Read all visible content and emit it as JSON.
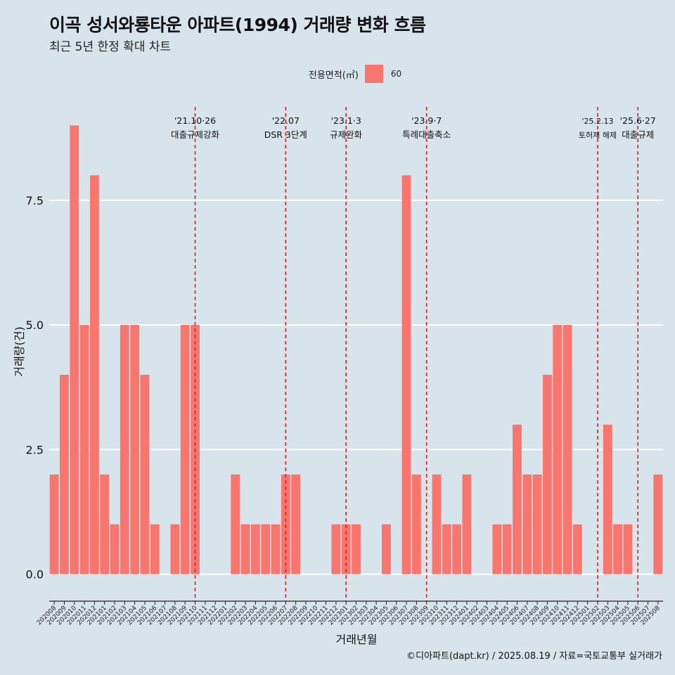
{
  "title": "이곡 성서와룡타운 아파트(1994) 거래량 변화 흐름",
  "subtitle": "최근 5년 한정 확대 차트",
  "caption": "©디아파트(dapt.kr) / 2025.08.19 / 자료=국토교통부 실거래가",
  "legend": {
    "title": "전용면적(㎡)",
    "label": "60",
    "color": "#f8766d"
  },
  "colors": {
    "background": "#d7e4ec",
    "bar": "#f8766d",
    "event_line": "#e31a1c",
    "grid": "#ffffff"
  },
  "chart_data": {
    "type": "bar",
    "xlabel": "거래년월",
    "ylabel": "거래량(건)",
    "ylim": [
      -0.4,
      9.5
    ],
    "y_ticks": [
      0,
      2.5,
      5,
      7.5
    ],
    "y_tick_labels": [
      "0.0",
      "2.5",
      "5.0",
      "7.5"
    ],
    "grid": true,
    "legend_position": "top",
    "categories": [
      "202008",
      "202009",
      "202010",
      "202011",
      "202012",
      "202101",
      "202102",
      "202103",
      "202104",
      "202105",
      "202106",
      "202107",
      "202108",
      "202109",
      "202110",
      "202111",
      "202112",
      "202201",
      "202202",
      "202203",
      "202204",
      "202205",
      "202206",
      "202207",
      "202208",
      "202209",
      "202210",
      "202211",
      "202212",
      "202301",
      "202302",
      "202303",
      "202304",
      "202305",
      "202306",
      "202307",
      "202308",
      "202309",
      "202310",
      "202311",
      "202312",
      "202401",
      "202402",
      "202403",
      "202404",
      "202405",
      "202406",
      "202407",
      "202408",
      "202409",
      "202410",
      "202411",
      "202412",
      "202501",
      "202502",
      "202503",
      "202504",
      "202505",
      "202506",
      "202507",
      "202508"
    ],
    "series": [
      {
        "name": "60",
        "values": [
          2,
          4,
          9,
          5,
          8,
          2,
          1,
          5,
          5,
          4,
          1,
          0,
          1,
          5,
          5,
          0,
          0,
          0,
          2,
          1,
          1,
          1,
          1,
          2,
          2,
          0,
          0,
          0,
          1,
          1,
          1,
          0,
          0,
          1,
          0,
          8,
          2,
          0,
          2,
          1,
          1,
          2,
          0,
          0,
          1,
          1,
          3,
          2,
          2,
          4,
          5,
          5,
          1,
          0,
          0,
          3,
          1,
          1,
          0,
          0,
          2
        ]
      }
    ],
    "events": [
      {
        "date": "'21.10·26",
        "label": "대출규제강화",
        "at": "202110"
      },
      {
        "date": "'22.07",
        "label": "DSR 3단계",
        "at": "202207"
      },
      {
        "date": "'23.1·3",
        "label": "규제완화",
        "at": "202301"
      },
      {
        "date": "'23.9·7",
        "label": "특례대출축소",
        "at": "202309"
      },
      {
        "date": "'25.2.13",
        "label": "토허제 해제",
        "at": "202502"
      },
      {
        "date": "'25.6·27",
        "label": "대출규제",
        "at": "202506"
      }
    ]
  }
}
